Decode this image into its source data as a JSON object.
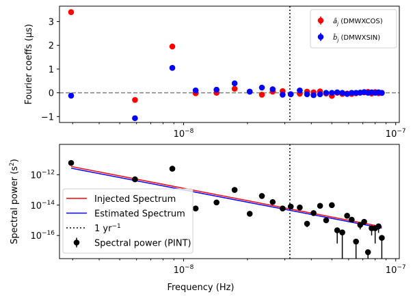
{
  "chart_data": [
    {
      "type": "scatter",
      "xscale": "log",
      "xlim": [
        2.6e-09,
        1.04e-07
      ],
      "ylim": [
        -1.25,
        3.65
      ],
      "ylabel": "Fourier coeffs (μs)",
      "xlabel": "",
      "x_ticks": [
        {
          "value": 1e-08,
          "base": "10",
          "exp": "−8"
        },
        {
          "value": 1e-07,
          "base": "10",
          "exp": "−7"
        }
      ],
      "y_ticks": [
        -1,
        0,
        1,
        2,
        3
      ],
      "zero_line": 0,
      "vline_x": 3.17e-08,
      "legend_position": "upper right",
      "series": [
        {
          "name": "âj (DMWXCOS)",
          "legend_sym": "â",
          "legend_sub": "j",
          "legend_rest": " (DMWXCOS)",
          "color": "#ff0000",
          "x": [
            2.95e-09,
            5.9e-09,
            8.85e-09,
            1.14e-08,
            1.43e-08,
            1.74e-08,
            2.05e-08,
            2.34e-08,
            2.63e-08,
            2.93e-08,
            3.2e-08,
            3.53e-08,
            3.82e-08,
            4.1e-08,
            4.4e-08,
            4.7e-08,
            5e-08,
            5.3e-08,
            5.6e-08,
            5.9e-08,
            6.2e-08,
            6.5e-08,
            6.8e-08,
            7.1e-08,
            7.4e-08,
            7.7e-08,
            8e-08,
            8.3e-08,
            8.6e-08
          ],
          "y": [
            3.4,
            -0.3,
            1.95,
            -0.02,
            0.0,
            0.17,
            0.05,
            -0.08,
            0.05,
            0.07,
            -0.06,
            -0.04,
            0.05,
            0.02,
            0.06,
            -0.03,
            -0.13,
            0.0,
            -0.05,
            -0.03,
            -0.05,
            -0.02,
            0.0,
            0.02,
            0.04,
            -0.03,
            0.03,
            -0.02,
            -0.01
          ]
        },
        {
          "name": "b̂j (DMWXSIN)",
          "legend_sym": "b̂",
          "legend_sub": "j",
          "legend_rest": " (DMWXSIN)",
          "color": "#0000ff",
          "x": [
            2.95e-09,
            5.9e-09,
            8.85e-09,
            1.14e-08,
            1.43e-08,
            1.74e-08,
            2.05e-08,
            2.34e-08,
            2.63e-08,
            2.93e-08,
            3.2e-08,
            3.53e-08,
            3.82e-08,
            4.1e-08,
            4.4e-08,
            4.7e-08,
            5e-08,
            5.3e-08,
            5.6e-08,
            5.9e-08,
            6.2e-08,
            6.5e-08,
            6.8e-08,
            7.1e-08,
            7.4e-08,
            7.7e-08,
            8e-08,
            8.3e-08,
            8.6e-08
          ],
          "y": [
            -0.12,
            -1.07,
            1.05,
            0.1,
            0.13,
            0.4,
            0.05,
            0.22,
            0.15,
            -0.08,
            -0.06,
            0.1,
            -0.06,
            -0.1,
            -0.06,
            0.0,
            0.0,
            0.02,
            0.0,
            -0.05,
            0.0,
            0.0,
            0.01,
            0.03,
            0.0,
            0.02,
            0.0,
            0.02,
            0.0
          ]
        }
      ]
    },
    {
      "type": "scatter",
      "xscale": "log",
      "yscale": "log",
      "xlim": [
        2.6e-09,
        1.04e-07
      ],
      "ylim": [
        3e-18,
        1e-10
      ],
      "xlabel": "Frequency (Hz)",
      "ylabel": "Spectral power (s²)",
      "x_ticks": [
        {
          "value": 1e-08,
          "base": "10",
          "exp": "−8"
        },
        {
          "value": 1e-07,
          "base": "10",
          "exp": "−7"
        }
      ],
      "y_ticks": [
        {
          "value": 1e-16,
          "base": "10",
          "exp": "−16"
        },
        {
          "value": 1e-14,
          "base": "10",
          "exp": "−14"
        },
        {
          "value": 1e-12,
          "base": "10",
          "exp": "−12"
        }
      ],
      "vline_x": 3.17e-08,
      "legend_position": "lower left",
      "legend": [
        {
          "label": "Injected Spectrum",
          "kind": "line",
          "color": "#ff0000"
        },
        {
          "label": "Estimated Spectrum",
          "kind": "line",
          "color": "#0000ff"
        },
        {
          "label": "1 yr",
          "sup": "−1",
          "kind": "dotted",
          "color": "#000000"
        },
        {
          "label": "Spectral power (PINT)",
          "kind": "errorbar",
          "color": "#000000"
        }
      ],
      "lines": [
        {
          "name": "Injected Spectrum",
          "color": "#ff0000",
          "x": [
            2.95e-09,
            8.6e-08
          ],
          "y": [
            3.5e-12,
            3.8e-16
          ]
        },
        {
          "name": "Estimated Spectrum",
          "color": "#0000ff",
          "x": [
            2.95e-09,
            8.6e-08
          ],
          "y": [
            2.7e-12,
            3.1e-16
          ]
        }
      ],
      "points": {
        "name": "Spectral power (PINT)",
        "color": "#000000",
        "x": [
          2.95e-09,
          5.9e-09,
          8.85e-09,
          1.14e-08,
          1.43e-08,
          1.74e-08,
          2.05e-08,
          2.34e-08,
          2.63e-08,
          2.93e-08,
          3.2e-08,
          3.53e-08,
          3.82e-08,
          4.1e-08,
          4.4e-08,
          4.7e-08,
          5e-08,
          5.3e-08,
          5.6e-08,
          5.9e-08,
          6.2e-08,
          6.5e-08,
          6.8e-08,
          7.1e-08,
          7.4e-08,
          7.7e-08,
          8e-08,
          8.3e-08,
          8.6e-08
        ],
        "y": [
          6e-12,
          5e-13,
          2.5e-12,
          6e-15,
          1.5e-14,
          1e-13,
          2.7e-15,
          4e-14,
          1.6e-14,
          6e-15,
          8e-15,
          7e-15,
          6e-16,
          3e-15,
          9e-15,
          1e-15,
          1e-14,
          2.2e-16,
          1.6e-16,
          2e-15,
          1.1e-15,
          4e-17,
          5e-16,
          8e-16,
          8e-18,
          3e-16,
          3e-16,
          4e-16,
          7e-17
        ],
        "ylo": [
          6e-12,
          5e-13,
          2.5e-12,
          6e-15,
          1.5e-14,
          1e-13,
          2.7e-15,
          4e-14,
          1.6e-14,
          6e-15,
          8e-15,
          7e-15,
          3.5e-16,
          3e-15,
          9e-15,
          1e-15,
          1e-14,
          3e-17,
          3e-18,
          2e-15,
          1.1e-15,
          3e-18,
          2.5e-16,
          8e-16,
          3e-18,
          1e-16,
          3e-17,
          1.5e-16,
          3e-18
        ],
        "yhi": [
          6e-12,
          5e-13,
          2.5e-12,
          6e-15,
          1.5e-14,
          1e-13,
          2.7e-15,
          4e-14,
          1.6e-14,
          6e-15,
          8e-15,
          7e-15,
          6e-16,
          3e-15,
          9e-15,
          1e-15,
          1e-14,
          2.2e-16,
          1.6e-16,
          2e-15,
          1.1e-15,
          4e-17,
          5e-16,
          8e-16,
          8e-18,
          3e-16,
          3e-16,
          4e-16,
          7e-17
        ]
      }
    }
  ]
}
